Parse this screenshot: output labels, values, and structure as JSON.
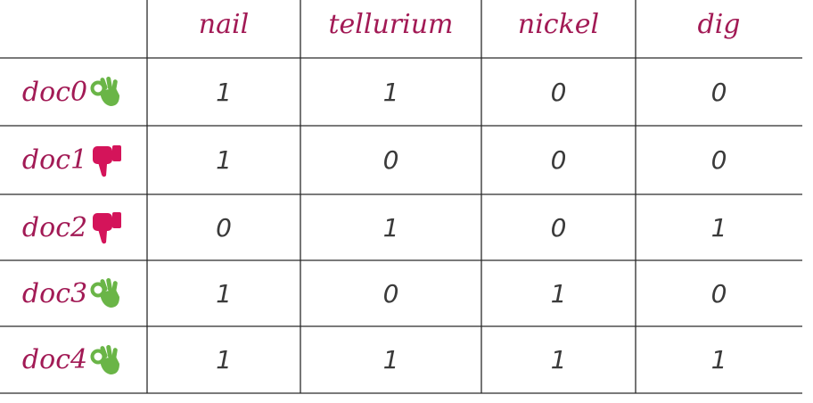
{
  "table": {
    "columns": [
      "nail",
      "tellurium",
      "nickel",
      "dig"
    ],
    "rows": [
      {
        "label": "doc0",
        "icon": "ok-hand-icon",
        "icon_color": "#6ab547",
        "values": [
          "1",
          "1",
          "0",
          "0"
        ]
      },
      {
        "label": "doc1",
        "icon": "thumbs-down-icon",
        "icon_color": "#d4145a",
        "values": [
          "1",
          "0",
          "0",
          "0"
        ]
      },
      {
        "label": "doc2",
        "icon": "thumbs-down-icon",
        "icon_color": "#d4145a",
        "values": [
          "0",
          "1",
          "0",
          "1"
        ]
      },
      {
        "label": "doc3",
        "icon": "ok-hand-icon",
        "icon_color": "#6ab547",
        "values": [
          "1",
          "0",
          "1",
          "0"
        ]
      },
      {
        "label": "doc4",
        "icon": "ok-hand-icon",
        "icon_color": "#6ab547",
        "values": [
          "1",
          "1",
          "1",
          "1"
        ]
      }
    ]
  },
  "colors": {
    "label_text": "#a21a55",
    "value_text": "#3a3a3a",
    "grid_line": "#2b2b2b",
    "ok_icon": "#6ab547",
    "bad_icon": "#d4145a"
  }
}
